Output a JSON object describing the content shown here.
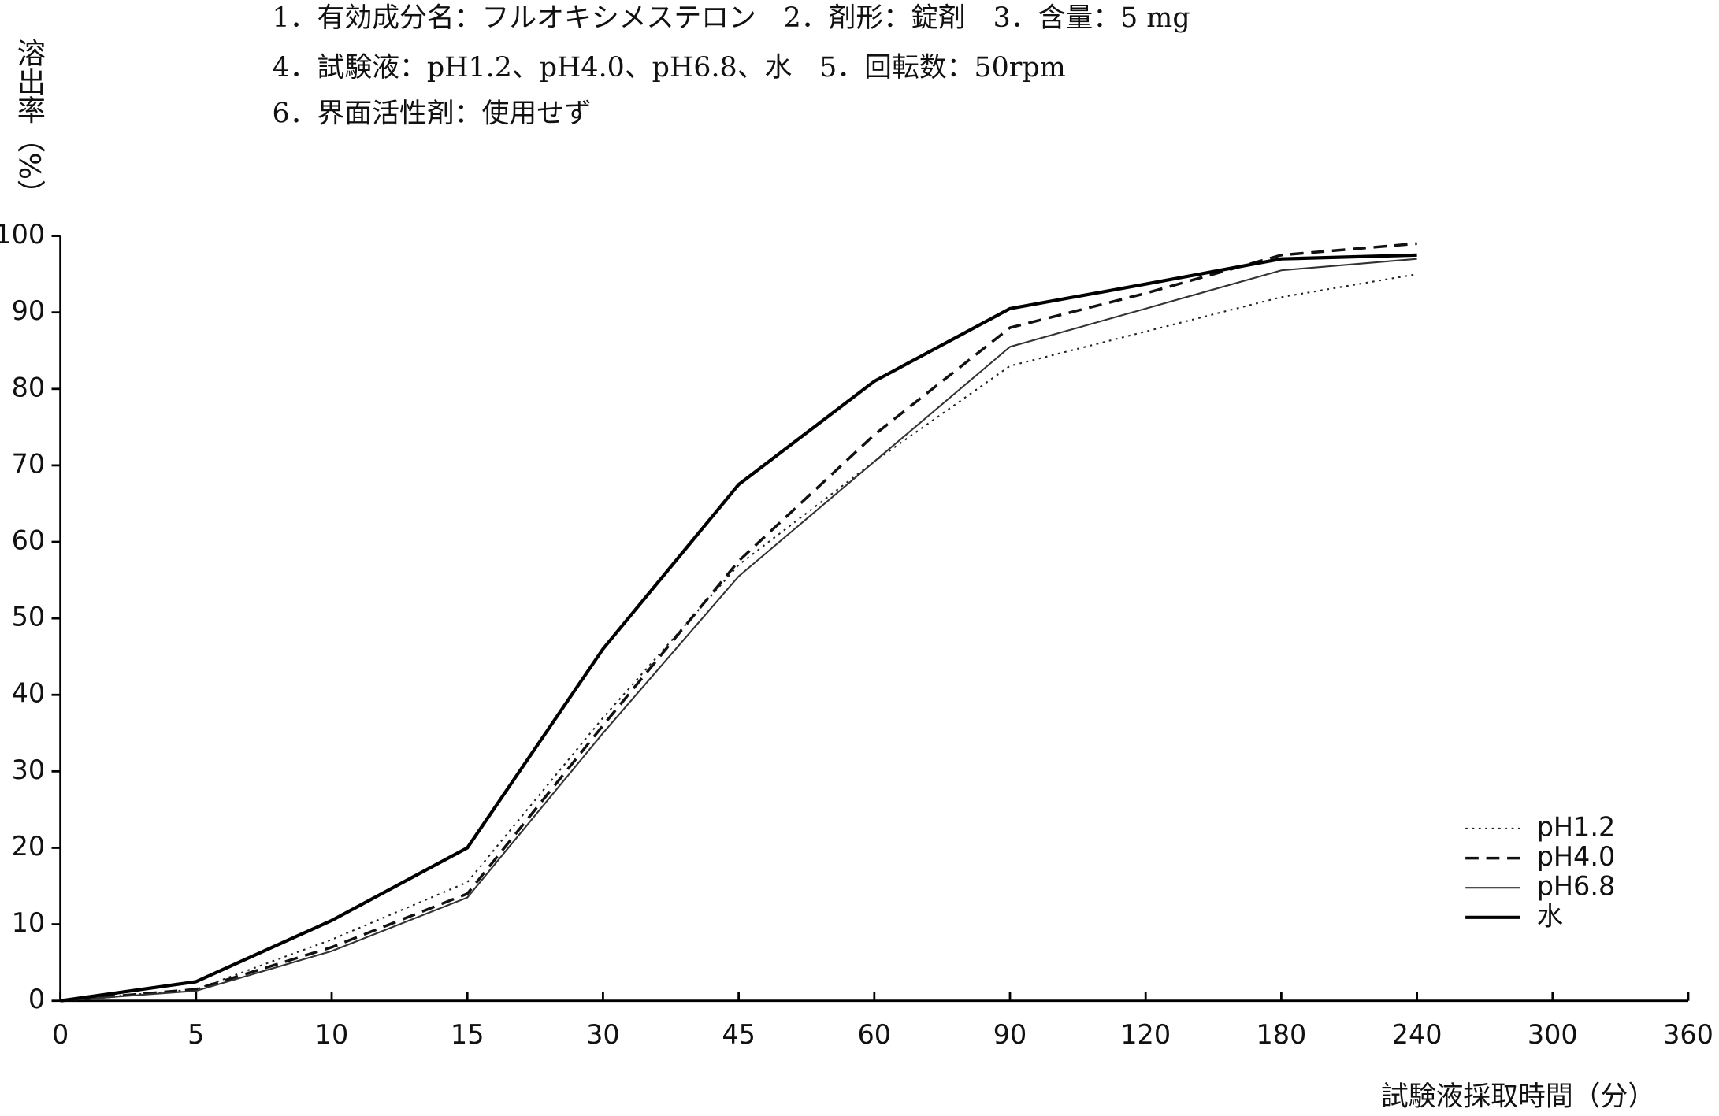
{
  "chart_data": {
    "type": "line",
    "header": [
      "1．有効成分名：フルオキシメステロン　2．剤形：錠剤　3．含量：5 mg",
      "4．試験液：pH1.2、pH4.0、pH6.8、水　5．回転数：50rpm",
      "6．界面活性剤：使用せず"
    ],
    "y_label": "溶出率（%）",
    "x_label": "試験液採取時間（分）",
    "categories": [
      "0",
      "5",
      "10",
      "15",
      "30",
      "45",
      "60",
      "90",
      "120",
      "180",
      "240",
      "300",
      "360"
    ],
    "ylim": [
      0,
      100
    ],
    "yticks": [
      0,
      10,
      20,
      30,
      40,
      50,
      60,
      70,
      80,
      90,
      100
    ],
    "legend": "lower right",
    "series": [
      {
        "name": "pH1.2",
        "color": "#222",
        "dash": "2,4",
        "width": 1.5,
        "values": [
          0,
          1.5,
          8,
          15.5,
          37,
          57,
          70.5,
          83,
          87.5,
          92,
          95,
          null,
          null
        ]
      },
      {
        "name": "pH4.0",
        "color": "#111",
        "dash": "12,7",
        "width": 2.5,
        "values": [
          0,
          1.5,
          7,
          14,
          36,
          57.5,
          74,
          88,
          92.5,
          97.5,
          99,
          null,
          null
        ]
      },
      {
        "name": "pH6.8",
        "color": "#333",
        "dash": "none",
        "width": 1.5,
        "values": [
          0,
          1.3,
          6.5,
          13.5,
          35,
          55.5,
          70.5,
          85.5,
          90.5,
          95.5,
          97,
          null,
          null
        ]
      },
      {
        "name": "水",
        "color": "#000",
        "dash": "none",
        "width": 3,
        "values": [
          0,
          2.5,
          10.5,
          20,
          46,
          67.5,
          81,
          90.5,
          93.7,
          97,
          97.5,
          null,
          null
        ]
      }
    ]
  }
}
